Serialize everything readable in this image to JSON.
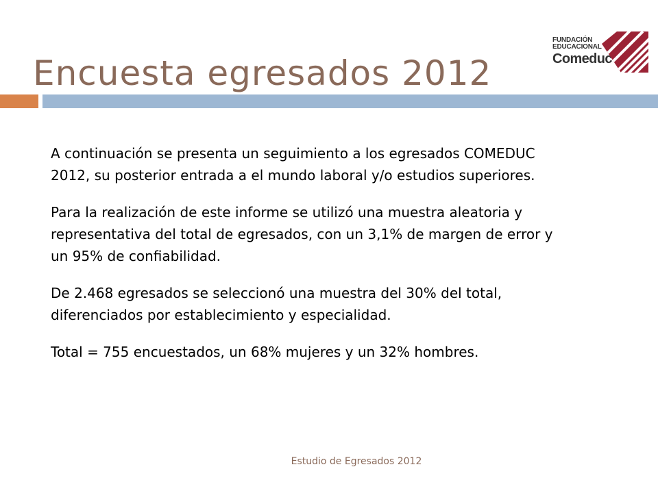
{
  "slide": {
    "title": "Encuesta egresados 2012",
    "paragraphs": [
      "A continuación se presenta un seguimiento a los egresados COMEDUC\n2012, su posterior entrada a el mundo laboral y/o estudios superiores.",
      "Para la realización de este informe se utilizó una muestra aleatoria y\nrepresentativa del total de egresados, con un 3,1% de margen de error y\nun 95% de confiabilidad.",
      "De 2.468 egresados se seleccionó una muestra del 30% del total,\ndiferenciados por establecimiento y especialidad.",
      "Total = 755 encuestados, un 68% mujeres y un 32% hombres."
    ],
    "footer": "Estudio de Egresados 2012"
  },
  "logo": {
    "line1": "FUNDACIÓN",
    "line2": "EDUCACIONAL",
    "brand": "Comeduc"
  },
  "colors": {
    "title": "#8a6a5a",
    "accent_bar": "#d9834a",
    "main_bar": "#9db7d3",
    "logo_mark": "#9b2335"
  }
}
